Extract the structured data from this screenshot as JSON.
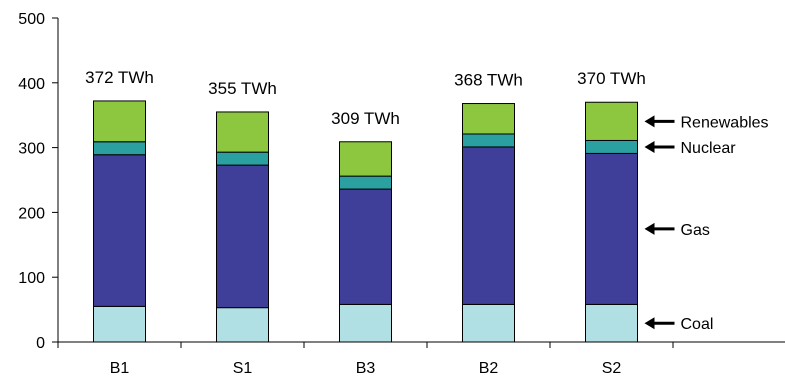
{
  "chart_data": {
    "type": "bar",
    "stacked": true,
    "categories": [
      "B1",
      "S1",
      "B3",
      "B2",
      "S2"
    ],
    "series": [
      {
        "name": "Coal",
        "color": "#b0e0e4",
        "values": [
          55,
          53,
          58,
          58,
          58
        ]
      },
      {
        "name": "Gas",
        "color": "#3f3f9a",
        "values": [
          234,
          220,
          178,
          243,
          233
        ]
      },
      {
        "name": "Nuclear",
        "color": "#2aa0a0",
        "values": [
          20,
          20,
          20,
          20,
          20
        ]
      },
      {
        "name": "Renewables",
        "color": "#8dc63f",
        "values": [
          63,
          62,
          53,
          47,
          59
        ]
      }
    ],
    "totals": [
      "372 TWh",
      "355 TWh",
      "309 TWh",
      "368 TWh",
      "370 TWh"
    ],
    "ylim": [
      0,
      500
    ],
    "yticks": [
      0,
      100,
      200,
      300,
      400,
      500
    ],
    "legend_placement": "right, arrows pointing to segments of last bar",
    "grid": false
  }
}
